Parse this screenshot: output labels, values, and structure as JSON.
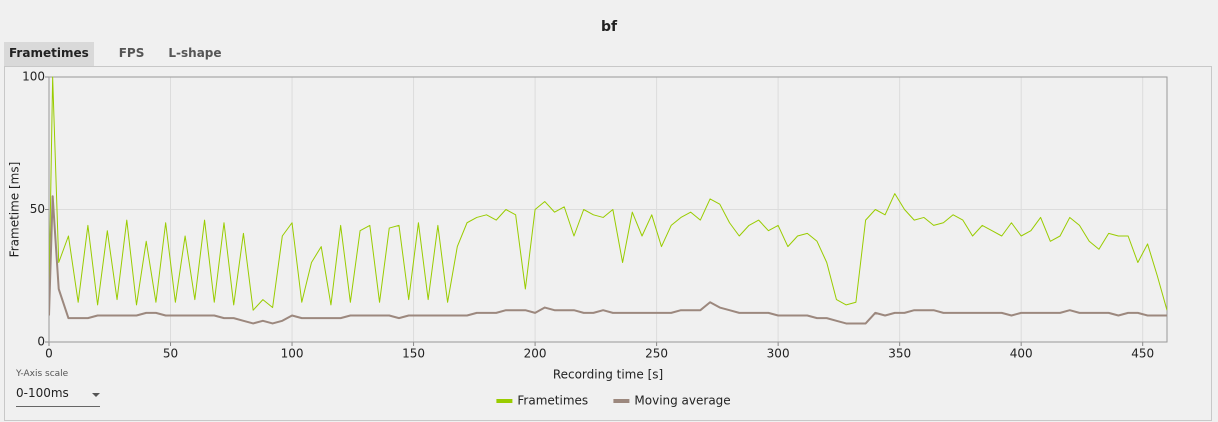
{
  "ui": {
    "title": "bf",
    "tabs": [
      "Frametimes",
      "FPS",
      "L-shape"
    ],
    "y_axis_scale": {
      "label": "Y-Axis scale",
      "value": "0-100ms"
    }
  },
  "chart_data": {
    "type": "line",
    "xlabel": "Recording time [s]",
    "ylabel": "Frametime [ms]",
    "xlim": [
      0,
      460
    ],
    "ylim": [
      0,
      100
    ],
    "xticks": [
      0,
      50,
      100,
      150,
      200,
      250,
      300,
      350,
      400,
      450
    ],
    "yticks": [
      0,
      50,
      100
    ],
    "grid": true,
    "legend": "bottom",
    "x": [
      0,
      1.5,
      4,
      8,
      12,
      16,
      20,
      24,
      28,
      32,
      36,
      40,
      44,
      48,
      52,
      56,
      60,
      64,
      68,
      72,
      76,
      80,
      84,
      88,
      92,
      96,
      100,
      104,
      108,
      112,
      116,
      120,
      124,
      128,
      132,
      136,
      140,
      144,
      148,
      152,
      156,
      160,
      164,
      168,
      172,
      176,
      180,
      184,
      188,
      192,
      196,
      200,
      204,
      208,
      212,
      216,
      220,
      224,
      228,
      232,
      236,
      240,
      244,
      248,
      252,
      256,
      260,
      264,
      268,
      272,
      276,
      280,
      284,
      288,
      292,
      296,
      300,
      304,
      308,
      312,
      316,
      320,
      324,
      328,
      332,
      336,
      340,
      344,
      348,
      352,
      356,
      360,
      364,
      368,
      372,
      376,
      380,
      384,
      388,
      392,
      396,
      400,
      404,
      408,
      412,
      416,
      420,
      424,
      428,
      432,
      436,
      440,
      444,
      448,
      452,
      456,
      460
    ],
    "series": [
      {
        "name": "Frametimes",
        "color": "#99cc00",
        "width": 1,
        "values": [
          18,
          100,
          30,
          40,
          15,
          44,
          14,
          42,
          16,
          46,
          14,
          38,
          15,
          45,
          15,
          40,
          16,
          46,
          15,
          45,
          14,
          41,
          12,
          16,
          13,
          40,
          45,
          15,
          30,
          36,
          14,
          44,
          15,
          42,
          44,
          15,
          43,
          44,
          16,
          45,
          16,
          44,
          15,
          36,
          45,
          47,
          48,
          46,
          50,
          48,
          20,
          50,
          53,
          49,
          51,
          40,
          50,
          48,
          47,
          50,
          30,
          49,
          40,
          48,
          36,
          44,
          47,
          49,
          46,
          54,
          52,
          45,
          40,
          44,
          46,
          42,
          44,
          36,
          40,
          41,
          38,
          30,
          16,
          14,
          15,
          46,
          50,
          48,
          56,
          50,
          46,
          47,
          44,
          45,
          48,
          46,
          40,
          44,
          42,
          40,
          45,
          40,
          42,
          47,
          38,
          40,
          47,
          44,
          38,
          35,
          41,
          40,
          40,
          30,
          37,
          25,
          12
        ]
      },
      {
        "name": "Moving average",
        "color": "#9c887e",
        "width": 2,
        "values": [
          10,
          55,
          20,
          9,
          9,
          9,
          10,
          10,
          10,
          10,
          10,
          11,
          11,
          10,
          10,
          10,
          10,
          10,
          10,
          9,
          9,
          8,
          7,
          8,
          7,
          8,
          10,
          9,
          9,
          9,
          9,
          9,
          10,
          10,
          10,
          10,
          10,
          9,
          10,
          10,
          10,
          10,
          10,
          10,
          10,
          11,
          11,
          11,
          12,
          12,
          12,
          11,
          13,
          12,
          12,
          12,
          11,
          11,
          12,
          11,
          11,
          11,
          11,
          11,
          11,
          11,
          12,
          12,
          12,
          15,
          13,
          12,
          11,
          11,
          11,
          11,
          10,
          10,
          10,
          10,
          9,
          9,
          8,
          7,
          7,
          7,
          11,
          10,
          11,
          11,
          12,
          12,
          12,
          11,
          11,
          11,
          11,
          11,
          11,
          11,
          10,
          11,
          11,
          11,
          11,
          11,
          12,
          11,
          11,
          11,
          11,
          10,
          11,
          11,
          10,
          10,
          10
        ]
      }
    ]
  }
}
